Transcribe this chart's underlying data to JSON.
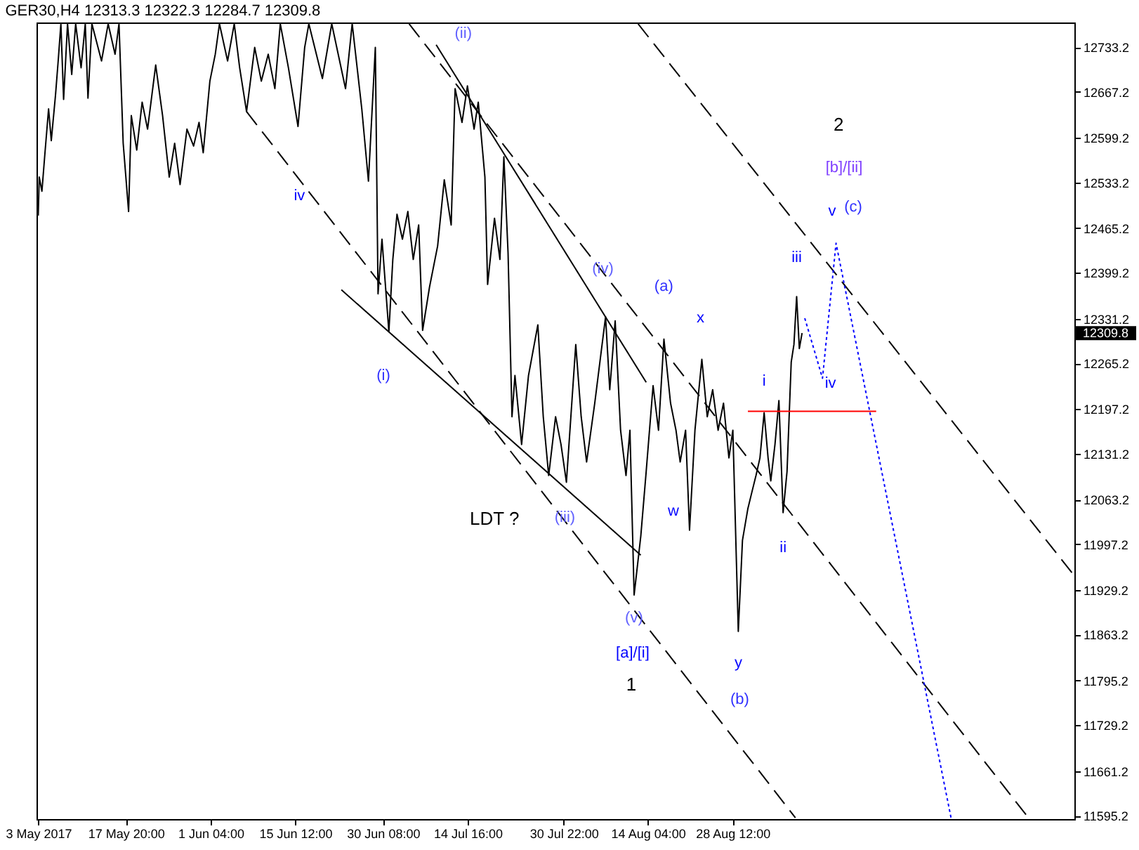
{
  "chart_data": {
    "type": "line",
    "title": "GER30,H4 12313.3 12322.3 12284.7 12309.8",
    "xlim": [
      "2017-05-02T17:00",
      "2017-10-25T08:00"
    ],
    "xticks": [
      {
        "value": "2017-05-03T00:00",
        "label": "3 May 2017"
      },
      {
        "value": "2017-05-17T20:00",
        "label": "17 May 20:00"
      },
      {
        "value": "2017-06-01T04:00",
        "label": "1 Jun 04:00"
      },
      {
        "value": "2017-06-15T12:00",
        "label": "15 Jun 12:00"
      },
      {
        "value": "2017-06-30T08:00",
        "label": "30 Jun 08:00"
      },
      {
        "value": "2017-07-14T16:00",
        "label": "14 Jul 16:00"
      },
      {
        "value": "2017-07-30T22:00",
        "label": "30 Jul 22:00"
      },
      {
        "value": "2017-08-14T04:00",
        "label": "14 Aug 04:00"
      },
      {
        "value": "2017-08-28T12:00",
        "label": "28 Aug 12:00"
      }
    ],
    "ylim": [
      11590,
      12770
    ],
    "yticks": [
      11595.2,
      11661.2,
      11729.2,
      11795.2,
      11863.2,
      11929.2,
      11997.2,
      12063.2,
      12131.2,
      12197.2,
      12265.2,
      12331.2,
      12399.2,
      12465.2,
      12533.2,
      12599.2,
      12667.2,
      12733.2
    ],
    "series": [
      {
        "color": "#000000",
        "line_style": "dashed",
        "x": [
          "2017-06-07T06:00",
          "2017-09-08T03:00"
        ],
        "values": [
          12638,
          11592
        ]
      },
      {
        "color": "#000000",
        "line_style": "dashed",
        "x": [
          "2017-07-04T18:00",
          "2017-10-17T13:00"
        ],
        "values": [
          12768,
          11592
        ]
      },
      {
        "color": "#000000",
        "line_style": "dashed",
        "x": [
          "2017-08-12T12:00",
          "2017-10-25T00:00"
        ],
        "values": [
          12768,
          11954
        ]
      },
      {
        "color": "#000000",
        "line_style": "solid",
        "x": [
          "2017-07-09T08:00",
          "2017-08-13T21:00"
        ],
        "values": [
          12737,
          12237
        ]
      },
      {
        "color": "#000000",
        "line_style": "solid",
        "x": [
          "2017-06-23T07:00",
          "2017-08-12T23:00"
        ],
        "values": [
          12374,
          11981
        ]
      },
      {
        "color": "#000000",
        "line_style": "solid",
        "x": [
          "2017-05-03T00:00",
          "2017-05-03T04:00",
          "2017-05-03T15:00",
          "2017-05-04T02:00",
          "2017-05-04T18:00",
          "2017-05-05T05:00",
          "2017-05-05T22:00",
          "2017-05-06T09:00",
          "2017-05-06T20:00",
          "2017-05-07T07:00",
          "2017-05-07T23:00",
          "2017-05-08T16:00",
          "2017-05-09T08:00",
          "2017-05-10T06:00",
          "2017-05-10T23:00",
          "2017-05-11T10:00",
          "2017-05-12T02:00",
          "2017-05-13T17:00",
          "2017-05-14T20:00",
          "2017-05-16T00:00",
          "2017-05-16T16:00",
          "2017-05-17T09:00",
          "2017-05-18T07:00",
          "2017-05-18T18:00",
          "2017-05-19T16:00",
          "2017-05-20T14:00",
          "2017-05-21T12:00",
          "2017-05-22T21:00",
          "2017-05-24T01:00",
          "2017-05-25T04:00",
          "2017-05-26T02:00",
          "2017-05-27T00:00",
          "2017-05-28T04:00",
          "2017-05-29T07:00",
          "2017-05-30T05:00",
          "2017-05-30T22:00",
          "2017-06-01T01:00",
          "2017-06-01T23:00",
          "2017-06-02T16:00",
          "2017-06-04T01:00",
          "2017-06-05T04:00",
          "2017-06-06T02:00",
          "2017-06-07T06:00",
          "2017-06-08T15:00",
          "2017-06-09T18:00",
          "2017-06-10T22:00",
          "2017-06-12T01:00",
          "2017-06-12T23:00",
          "2017-06-14T08:00",
          "2017-06-15T23:00",
          "2017-06-17T02:00",
          "2017-06-17T19:00",
          "2017-06-20T02:00",
          "2017-06-21T16:00",
          "2017-06-24T00:00",
          "2017-06-25T03:00",
          "2017-06-26T18:00",
          "2017-06-27T21:00",
          "2017-06-29T01:00",
          "2017-06-29T12:00",
          "2017-06-30T04:00",
          "2017-07-01T08:00",
          "2017-07-02T00:00",
          "2017-07-02T17:00",
          "2017-07-03T15:00",
          "2017-07-04T13:00",
          "2017-07-05T11:00",
          "2017-07-06T09:00",
          "2017-07-07T01:00",
          "2017-07-08T05:00",
          "2017-07-09T14:00",
          "2017-07-10T17:00",
          "2017-07-11T21:00",
          "2017-07-12T13:00",
          "2017-07-13T17:00",
          "2017-07-14T15:00",
          "2017-07-15T18:00",
          "2017-07-16T11:00",
          "2017-07-17T14:00",
          "2017-07-18T01:00",
          "2017-07-19T05:00",
          "2017-07-20T03:00",
          "2017-07-20T19:00",
          "2017-07-21T12:00",
          "2017-07-22T04:00",
          "2017-07-22T16:00",
          "2017-07-23T19:00",
          "2017-07-24T23:00",
          "2017-07-26T13:00",
          "2017-07-27T11:00",
          "2017-07-28T09:00",
          "2017-07-29T13:00",
          "2017-07-30T11:00",
          "2017-07-31T09:00",
          "2017-08-01T23:00",
          "2017-08-02T21:00",
          "2017-08-03T19:00",
          "2017-08-05T04:00",
          "2017-08-07T00:00",
          "2017-08-07T17:00",
          "2017-08-08T15:00",
          "2017-08-09T13:00",
          "2017-08-10T11:00",
          "2017-08-11T03:00",
          "2017-08-11T20:00",
          "2017-08-12T23:00",
          "2017-08-13T21:00",
          "2017-08-15T01:00",
          "2017-08-15T23:00",
          "2017-08-16T21:00",
          "2017-08-18T00:00",
          "2017-08-18T22:00",
          "2017-08-19T15:00",
          "2017-08-20T13:00",
          "2017-08-21T05:00",
          "2017-08-22T03:00",
          "2017-08-23T07:00",
          "2017-08-24T05:00",
          "2017-08-25T03:00",
          "2017-08-26T01:00",
          "2017-08-26T23:00",
          "2017-08-27T21:00",
          "2017-08-28T13:00",
          "2017-08-29T11:00",
          "2017-08-30T04:00",
          "2017-08-31T02:00",
          "2017-08-31T18:00",
          "2017-09-01T11:00",
          "2017-09-02T03:00",
          "2017-09-02T20:00",
          "2017-09-03T12:00",
          "2017-09-03T23:00",
          "2017-09-04T16:00",
          "2017-09-05T08:00",
          "2017-09-06T01:00",
          "2017-09-06T17:00",
          "2017-09-07T10:00",
          "2017-09-07T21:00",
          "2017-09-08T08:00",
          "2017-09-08T19:00",
          "2017-09-09T06:00"
        ],
        "values": [
          12484,
          12541,
          12520,
          12571,
          12642,
          12595,
          12662,
          12713,
          12768,
          12656,
          12768,
          12693,
          12768,
          12703,
          12768,
          12658,
          12768,
          12713,
          12768,
          12723,
          12768,
          12591,
          12490,
          12632,
          12581,
          12652,
          12612,
          12707,
          12632,
          12541,
          12591,
          12530,
          12612,
          12587,
          12622,
          12577,
          12683,
          12723,
          12768,
          12713,
          12768,
          12703,
          12638,
          12733,
          12683,
          12723,
          12672,
          12768,
          12703,
          12616,
          12733,
          12768,
          12687,
          12768,
          12672,
          12768,
          12642,
          12535,
          12733,
          12368,
          12449,
          12312,
          12419,
          12486,
          12449,
          12490,
          12419,
          12470,
          12314,
          12378,
          12439,
          12537,
          12470,
          12672,
          12622,
          12676,
          12612,
          12652,
          12541,
          12382,
          12480,
          12419,
          12571,
          12429,
          12186,
          12247,
          12145,
          12247,
          12322,
          12186,
          12099,
          12186,
          12145,
          12089,
          12293,
          12186,
          12119,
          12206,
          12334,
          12226,
          12328,
          12166,
          12099,
          12166,
          11922,
          12009,
          12105,
          12232,
          12166,
          12301,
          12206,
          12166,
          12119,
          12166,
          12018,
          12166,
          12271,
          12186,
          12226,
          12166,
          12206,
          12125,
          12166,
          11868,
          12003,
          12050,
          12074,
          12099,
          12125,
          12192,
          12125,
          12091,
          12145,
          12210,
          12044,
          12105,
          12267,
          12293,
          12364,
          12287,
          12310
        ]
      },
      {
        "color": "#ff0000",
        "line_style": "solid",
        "x": [
          "2017-08-31T02:00",
          "2017-09-21T19:00"
        ],
        "values": [
          12194,
          12194
        ]
      },
      {
        "color": "#0000ff",
        "line_style": "dotted",
        "x": [
          "2017-09-09T17:00",
          "2017-09-12T17:00",
          "2017-09-15T00:00",
          "2017-10-04T11:00"
        ],
        "values": [
          12332,
          12243,
          12443,
          11592
        ]
      }
    ],
    "annotations": [
      "(ii)",
      "iv",
      "(i)",
      "(iv)",
      "(a)",
      "x",
      "(iii)",
      "LDT ?",
      "w",
      "(v)",
      "[a]/[i]",
      "1",
      "y",
      "(b)",
      "i",
      "ii",
      "iii",
      "iv",
      "v",
      "(c)",
      "[b]/[ii]",
      "2",
      "12309.8"
    ]
  }
}
